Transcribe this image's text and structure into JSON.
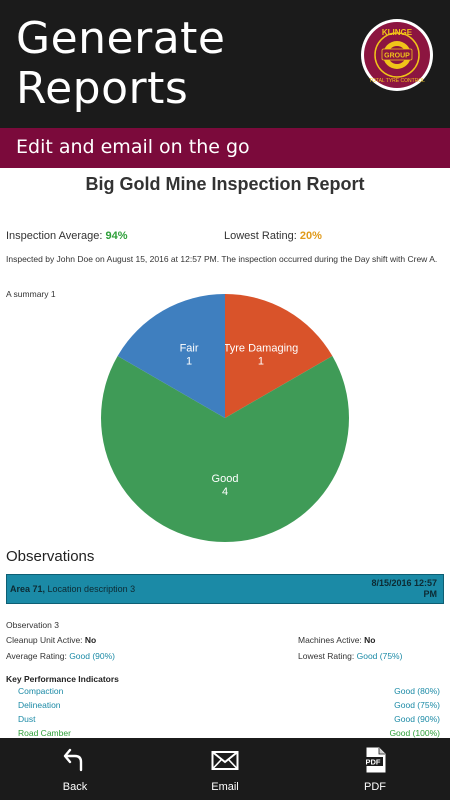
{
  "header": {
    "title_line1": "Generate",
    "title_line2": "Reports",
    "subtitle": "Edit and email on the go"
  },
  "logo": {
    "text_top": "KLINGE",
    "text_mid": "GROUP",
    "text_bottom": "TOTAL TYRE CONTROL",
    "icon": "klinge-logo"
  },
  "report": {
    "title": "Big Gold Mine Inspection Report",
    "inspection_average_label": "Inspection Average:",
    "inspection_average_value": "94%",
    "lowest_rating_label": "Lowest Rating:",
    "lowest_rating_value": "20%",
    "inspected_text": "Inspected by John Doe on August 15, 2016 at 12:57 PM. The inspection occurred during the Day shift with Crew A.",
    "summary_label": "A summary 1"
  },
  "chart_data": {
    "type": "pie",
    "slices": [
      {
        "label": "Tyre Damaging",
        "value": 1,
        "color": "#d9532a"
      },
      {
        "label": "Good",
        "value": 4,
        "color": "#3f9b57"
      },
      {
        "label": "Fair",
        "value": 1,
        "color": "#3f7fbf"
      }
    ]
  },
  "observations": {
    "heading": "Observations",
    "area_label": "Area 71,",
    "location": " Location description 3",
    "datetime_line1": "8/15/2016 12:57",
    "datetime_line2": "PM",
    "observation_title": "Observation 3",
    "cleanup_label": "Cleanup Unit Active:",
    "cleanup_value": "No",
    "machines_label": "Machines Active:",
    "machines_value": "No",
    "avg_rating_label": "Average Rating:",
    "avg_rating_value": "Good (90%)",
    "lowest_rating_label": "Lowest Rating:",
    "lowest_rating_value": "Good (75%)",
    "kpi_heading": "Key Performance Indicators",
    "kpis": [
      {
        "name": "Compaction",
        "value": "Good (80%)"
      },
      {
        "name": "Delineation",
        "value": "Good (75%)"
      },
      {
        "name": "Dust",
        "value": "Good (90%)"
      },
      {
        "name": "Road Camber",
        "value": "Good (100%)"
      }
    ]
  },
  "bottom_nav": {
    "back_label": "Back",
    "email_label": "Email",
    "pdf_label": "PDF",
    "pdf_icon_text": "PDF"
  },
  "colors": {
    "header_bg": "#1b1b1b",
    "subheader_bg": "#7b0a3b",
    "accent": "#1b8aa6",
    "good": "#2fa03a",
    "warn": "#e09a1a"
  }
}
